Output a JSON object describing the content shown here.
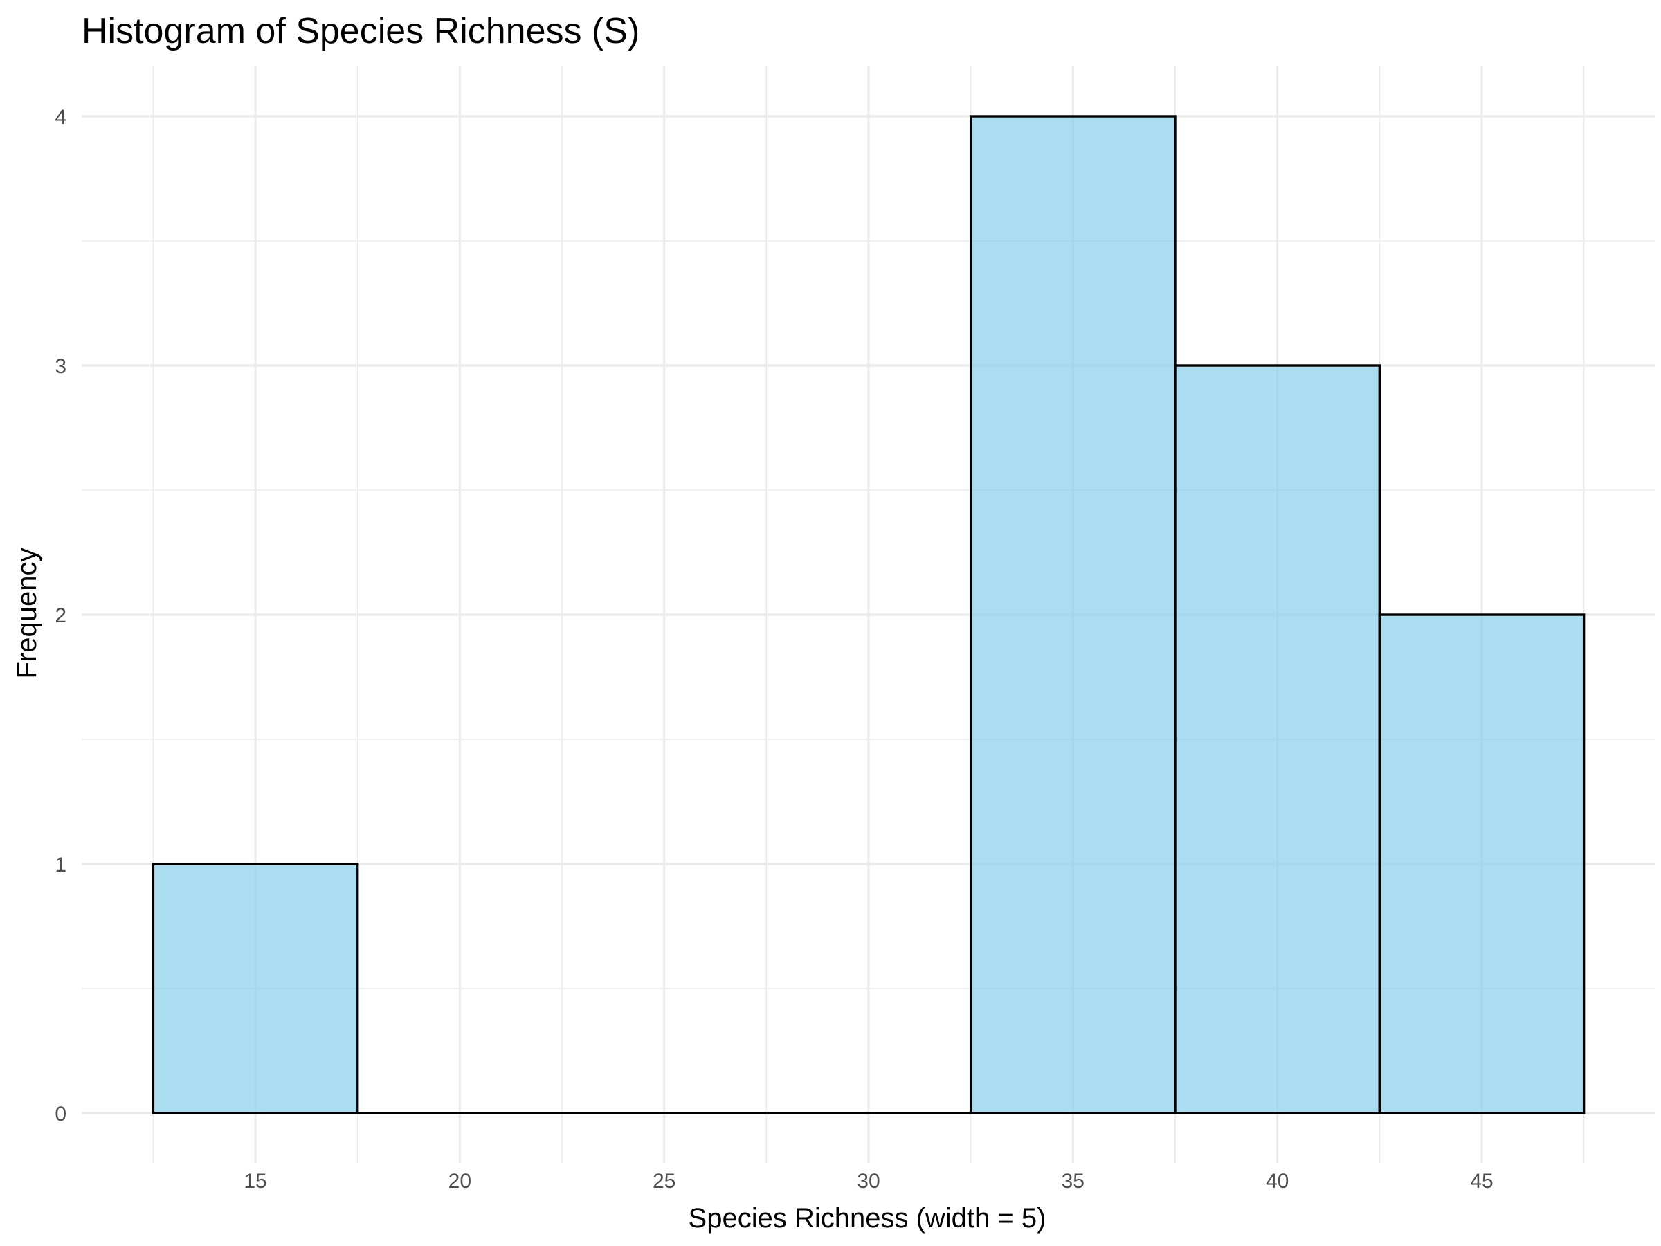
{
  "chart_data": {
    "type": "bar",
    "title": "Histogram of Species Richness (S)",
    "xlabel": "Species Richness (width = 5)",
    "ylabel": "Frequency",
    "bin_width": 5,
    "bins": [
      {
        "x0": 12.5,
        "x1": 17.5,
        "count": 1
      },
      {
        "x0": 17.5,
        "x1": 22.5,
        "count": 0
      },
      {
        "x0": 22.5,
        "x1": 27.5,
        "count": 0
      },
      {
        "x0": 27.5,
        "x1": 32.5,
        "count": 0
      },
      {
        "x0": 32.5,
        "x1": 37.5,
        "count": 4
      },
      {
        "x0": 37.5,
        "x1": 42.5,
        "count": 3
      },
      {
        "x0": 42.5,
        "x1": 47.5,
        "count": 2
      }
    ],
    "categories": [
      "15",
      "20",
      "25",
      "30",
      "35",
      "40",
      "45"
    ],
    "values": [
      1,
      0,
      0,
      0,
      4,
      3,
      2
    ],
    "xlim": [
      10.75,
      49.25
    ],
    "ylim": [
      -0.2,
      4.2
    ],
    "x_ticks": [
      15,
      20,
      25,
      30,
      35,
      40,
      45
    ],
    "x_tick_labels": [
      "15",
      "20",
      "25",
      "30",
      "35",
      "40",
      "45"
    ],
    "y_ticks": [
      0,
      1,
      2,
      3,
      4
    ],
    "y_tick_labels": [
      "0",
      "1",
      "2",
      "3",
      "4"
    ],
    "grid": true,
    "legend": "none",
    "colors": {
      "fill": "#87CEEB",
      "fill_opacity": 0.7,
      "outline": "#000000",
      "grid": "#ebebeb",
      "tick_text": "#4d4d4d"
    }
  }
}
